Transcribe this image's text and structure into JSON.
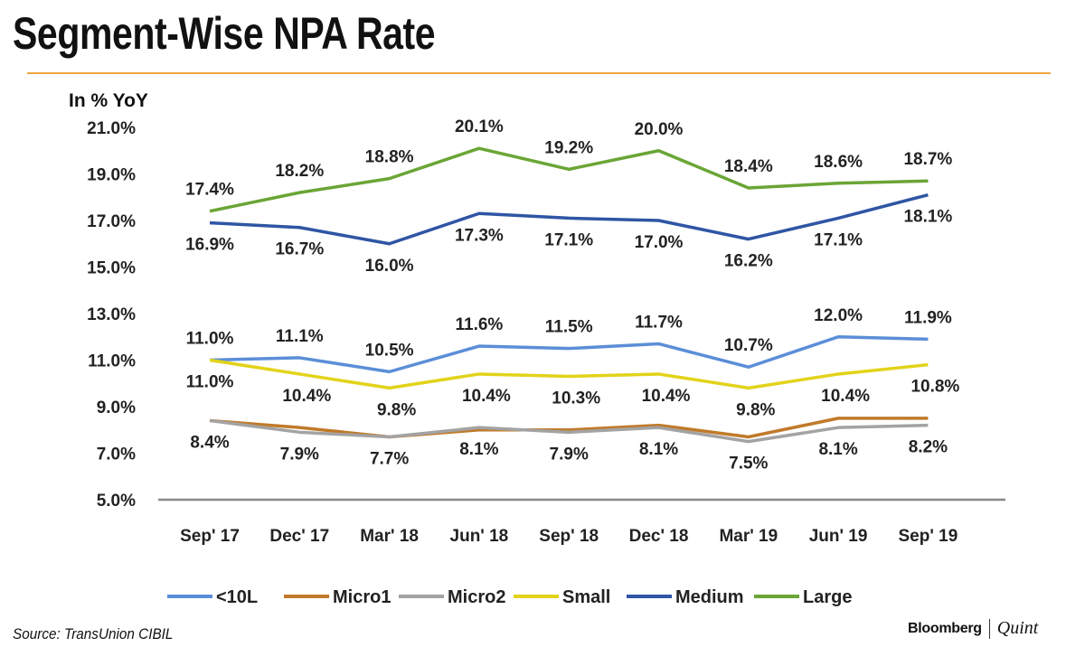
{
  "title": "Segment-Wise NPA Rate",
  "source": "Source: TransUnion CIBIL",
  "brand": {
    "left": "Bloomberg",
    "right": "Quint"
  },
  "chart_data": {
    "type": "line",
    "title": "Segment-Wise NPA Rate",
    "ylabel": "In % YoY",
    "xlabel": "",
    "ylim": [
      5.0,
      21.0
    ],
    "yticks": [
      "5.0%",
      "7.0%",
      "9.0%",
      "11.0%",
      "13.0%",
      "15.0%",
      "17.0%",
      "19.0%",
      "21.0%"
    ],
    "ytick_values": [
      5,
      7,
      9,
      11,
      13,
      15,
      17,
      19,
      21
    ],
    "grid": false,
    "legend_position": "bottom",
    "categories": [
      "Sep' 17",
      "Dec' 17",
      "Mar' 18",
      "Jun' 18",
      "Sep' 18",
      "Dec' 18",
      "Mar' 19",
      "Jun' 19",
      "Sep' 19"
    ],
    "series": [
      {
        "name": "<10L",
        "color": "#5b8ed8",
        "values": [
          11.0,
          11.1,
          10.5,
          11.6,
          11.5,
          11.7,
          10.7,
          12.0,
          11.9
        ],
        "labeled": true,
        "label_pos": "above"
      },
      {
        "name": "Micro1",
        "color": "#c07a2a",
        "values": [
          8.4,
          8.1,
          7.7,
          8.0,
          8.0,
          8.2,
          7.7,
          8.5,
          8.5
        ],
        "labeled": false
      },
      {
        "name": "Micro2",
        "color": "#a3a3a3",
        "values": [
          8.4,
          7.9,
          7.7,
          8.1,
          7.9,
          8.1,
          7.5,
          8.1,
          8.2
        ],
        "labeled": true,
        "label_pos": "below"
      },
      {
        "name": "Small",
        "color": "#e2d31a",
        "values": [
          11.0,
          10.4,
          9.8,
          10.4,
          10.3,
          10.4,
          9.8,
          10.4,
          10.8
        ],
        "labeled": true,
        "label_pos": "below"
      },
      {
        "name": "Medium",
        "color": "#2f55a4",
        "values": [
          16.9,
          16.7,
          16.0,
          17.3,
          17.1,
          17.0,
          16.2,
          17.1,
          18.1
        ],
        "labeled": true,
        "label_pos": "below"
      },
      {
        "name": "Large",
        "color": "#6aa535",
        "values": [
          17.4,
          18.2,
          18.8,
          20.1,
          19.2,
          20.0,
          18.4,
          18.6,
          18.7
        ],
        "labeled": true,
        "label_pos": "above"
      }
    ]
  }
}
